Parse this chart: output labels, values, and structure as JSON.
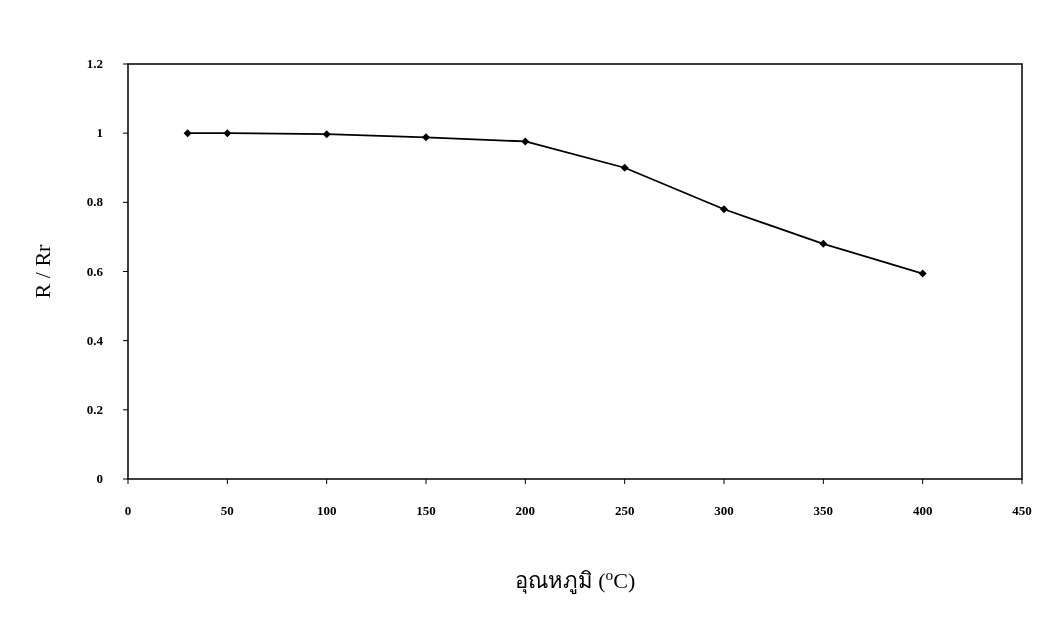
{
  "chart_data": {
    "type": "line",
    "xlabel": "อุณหภูมิ ($^{o}$C)",
    "ylabel": "R / Rr",
    "x": [
      30,
      50,
      100,
      150,
      200,
      250,
      300,
      350,
      400
    ],
    "series": [
      {
        "color": "#000000",
        "values": [
          1.0,
          1.0,
          0.997,
          0.988,
          0.976,
          0.9,
          0.78,
          0.68,
          0.594
        ]
      }
    ],
    "xlim": [
      0,
      450
    ],
    "xticks": [
      0,
      50,
      100,
      150,
      200,
      250,
      300,
      350,
      400,
      450
    ],
    "ylim": [
      0,
      1.2
    ],
    "yticks": [
      0,
      0.2,
      0.4,
      0.6,
      0.8,
      1,
      1.2
    ],
    "marker": "diamond",
    "line_style": "solid",
    "grid": false
  }
}
